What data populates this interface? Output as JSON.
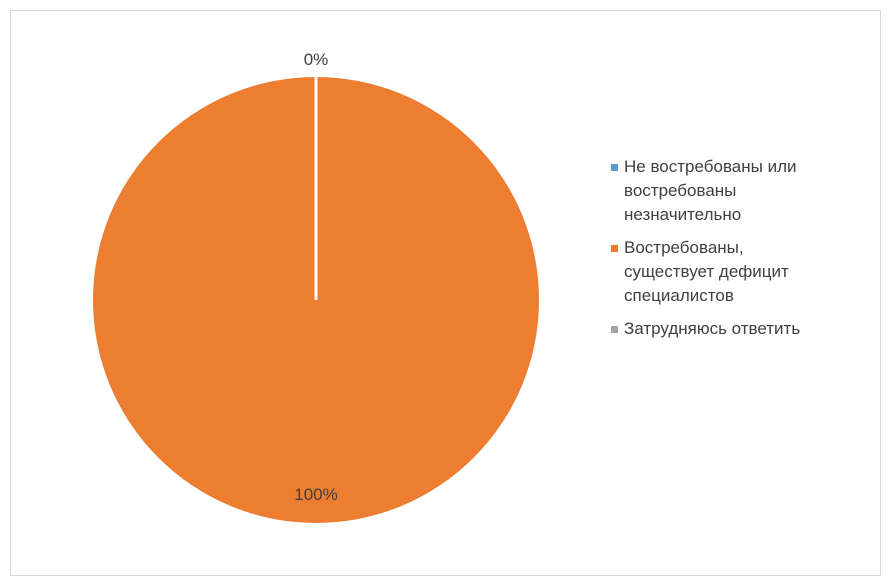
{
  "chart_data": {
    "type": "pie",
    "title": "",
    "series": [
      {
        "labels": [
          "Не востребованы или\nвостребованы\nнезначительно",
          "Востребованы,\nсуществует дефицит\nспециалистов",
          "Затрудняюсь ответить"
        ],
        "values": [
          0,
          100,
          0
        ],
        "colors": [
          "#5B9BD5",
          "#ED7D31",
          "#A5A5A5"
        ]
      }
    ],
    "data_labels": [
      "0%",
      "100%"
    ],
    "legend": {
      "position": "right"
    },
    "slice_separator_color": "#ffffff"
  }
}
